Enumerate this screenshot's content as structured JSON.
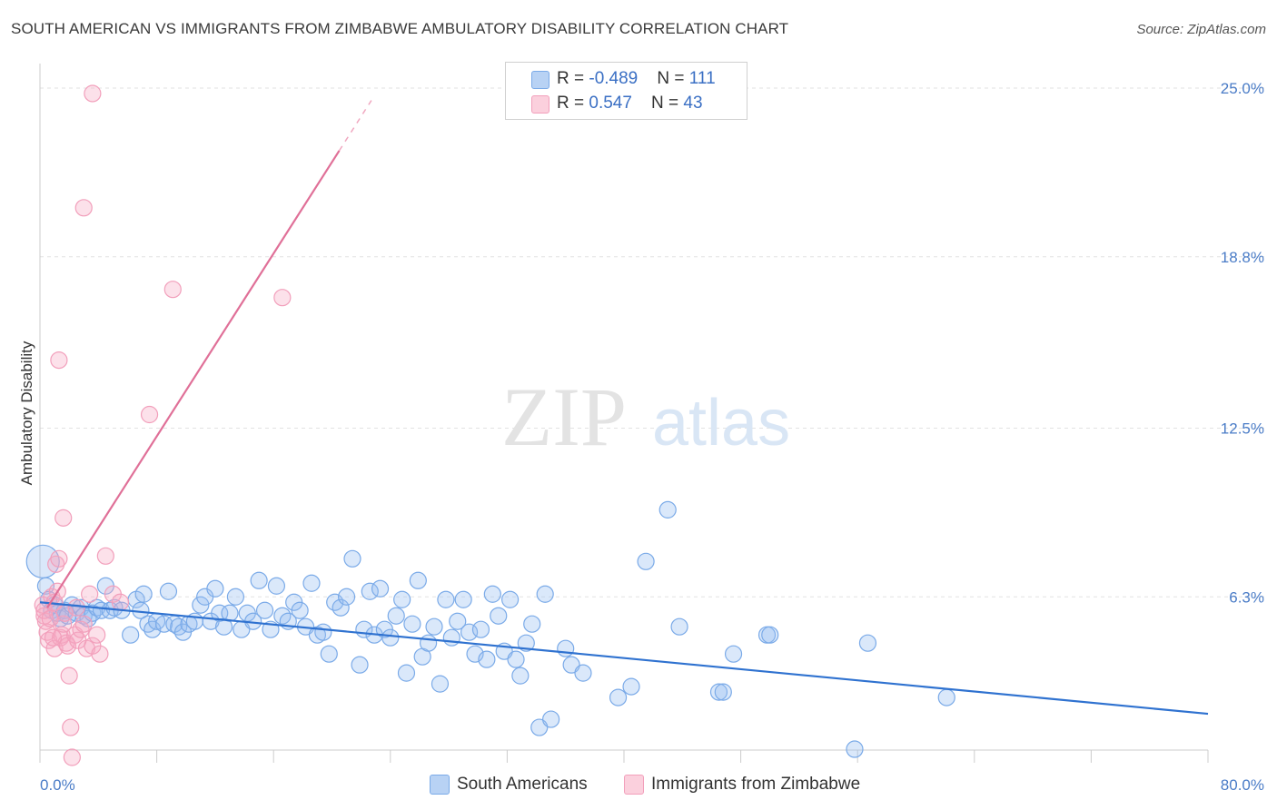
{
  "header": {
    "title": "SOUTH AMERICAN VS IMMIGRANTS FROM ZIMBABWE AMBULATORY DISABILITY CORRELATION CHART",
    "source": "Source: ZipAtlas.com"
  },
  "watermark": {
    "zip": "ZIP",
    "atlas": "atlas"
  },
  "legend": {
    "row1": {
      "r_label": "R = ",
      "r_value": "-0.489",
      "n_label": "N = ",
      "n_value": "111"
    },
    "row2": {
      "r_label": "R = ",
      "r_value": " 0.547",
      "n_label": "N = ",
      "n_value": "43"
    }
  },
  "chart_data": {
    "type": "scatter",
    "title": "SOUTH AMERICAN VS IMMIGRANTS FROM ZIMBABWE AMBULATORY DISABILITY CORRELATION CHART",
    "xlabel": "",
    "ylabel": "Ambulatory Disability",
    "xlim": [
      0,
      80
    ],
    "ylim": [
      0,
      26
    ],
    "y_ticks": [
      6.3,
      12.5,
      18.8,
      25.0
    ],
    "y_tick_labels": [
      "6.3%",
      "12.5%",
      "18.8%",
      "25.0%"
    ],
    "x_tick_labels": [
      "0.0%",
      "80.0%"
    ],
    "grid": true,
    "legend_placement": "top-center",
    "series": [
      {
        "name": "South Americans",
        "color": "#7aaae8",
        "trend": {
          "x": [
            0,
            80
          ],
          "y": [
            6.1,
            2.0
          ]
        },
        "points": [
          [
            0.2,
            7.6
          ],
          [
            0.4,
            6.7
          ],
          [
            0.6,
            6.2
          ],
          [
            0.8,
            5.8
          ],
          [
            1.0,
            6.0
          ],
          [
            1.2,
            5.7
          ],
          [
            1.4,
            5.5
          ],
          [
            1.7,
            5.8
          ],
          [
            1.9,
            5.6
          ],
          [
            2.2,
            6.0
          ],
          [
            2.5,
            5.7
          ],
          [
            2.8,
            5.9
          ],
          [
            3.0,
            5.6
          ],
          [
            3.3,
            5.5
          ],
          [
            3.6,
            5.7
          ],
          [
            3.9,
            5.9
          ],
          [
            4.2,
            5.8
          ],
          [
            4.5,
            6.7
          ],
          [
            4.8,
            5.8
          ],
          [
            5.1,
            5.9
          ],
          [
            5.6,
            5.8
          ],
          [
            6.2,
            4.9
          ],
          [
            6.6,
            6.2
          ],
          [
            6.9,
            5.8
          ],
          [
            7.1,
            6.4
          ],
          [
            7.4,
            5.3
          ],
          [
            7.7,
            5.1
          ],
          [
            8.0,
            5.4
          ],
          [
            8.5,
            5.3
          ],
          [
            8.8,
            6.5
          ],
          [
            9.2,
            5.3
          ],
          [
            9.5,
            5.2
          ],
          [
            9.8,
            5.0
          ],
          [
            10.2,
            5.3
          ],
          [
            10.6,
            5.4
          ],
          [
            11.0,
            6.0
          ],
          [
            11.3,
            6.3
          ],
          [
            11.7,
            5.4
          ],
          [
            12.0,
            6.6
          ],
          [
            12.3,
            5.7
          ],
          [
            12.6,
            5.2
          ],
          [
            13.0,
            5.7
          ],
          [
            13.4,
            6.3
          ],
          [
            13.8,
            5.1
          ],
          [
            14.2,
            5.7
          ],
          [
            14.6,
            5.4
          ],
          [
            15.0,
            6.9
          ],
          [
            15.4,
            5.8
          ],
          [
            15.8,
            5.1
          ],
          [
            16.2,
            6.7
          ],
          [
            16.6,
            5.6
          ],
          [
            17.0,
            5.4
          ],
          [
            17.4,
            6.1
          ],
          [
            17.8,
            5.8
          ],
          [
            18.2,
            5.2
          ],
          [
            18.6,
            6.8
          ],
          [
            19.0,
            4.9
          ],
          [
            19.4,
            5.0
          ],
          [
            19.8,
            4.2
          ],
          [
            20.2,
            6.1
          ],
          [
            20.6,
            5.9
          ],
          [
            21.0,
            6.3
          ],
          [
            21.4,
            7.7
          ],
          [
            21.9,
            3.8
          ],
          [
            22.2,
            5.1
          ],
          [
            22.6,
            6.5
          ],
          [
            22.9,
            4.9
          ],
          [
            23.3,
            6.6
          ],
          [
            23.6,
            5.1
          ],
          [
            24.0,
            4.8
          ],
          [
            24.4,
            5.6
          ],
          [
            24.8,
            6.2
          ],
          [
            25.1,
            3.5
          ],
          [
            25.5,
            5.3
          ],
          [
            25.9,
            6.9
          ],
          [
            26.2,
            4.1
          ],
          [
            26.6,
            4.6
          ],
          [
            27.0,
            5.2
          ],
          [
            27.4,
            3.1
          ],
          [
            27.8,
            6.2
          ],
          [
            28.2,
            4.8
          ],
          [
            28.6,
            5.4
          ],
          [
            29.0,
            6.2
          ],
          [
            29.4,
            5.0
          ],
          [
            29.8,
            4.2
          ],
          [
            30.2,
            5.1
          ],
          [
            30.6,
            4.0
          ],
          [
            31.0,
            6.4
          ],
          [
            31.4,
            5.6
          ],
          [
            31.8,
            4.3
          ],
          [
            32.2,
            6.2
          ],
          [
            32.6,
            4.0
          ],
          [
            32.9,
            3.4
          ],
          [
            33.3,
            4.6
          ],
          [
            33.7,
            5.3
          ],
          [
            34.2,
            1.5
          ],
          [
            34.6,
            6.4
          ],
          [
            35.0,
            1.8
          ],
          [
            36.0,
            4.4
          ],
          [
            36.4,
            3.8
          ],
          [
            37.2,
            3.5
          ],
          [
            39.6,
            2.6
          ],
          [
            40.5,
            3.0
          ],
          [
            41.5,
            7.6
          ],
          [
            43.0,
            9.5
          ],
          [
            43.8,
            5.2
          ],
          [
            46.5,
            2.8
          ],
          [
            46.8,
            2.8
          ],
          [
            47.5,
            4.2
          ],
          [
            49.8,
            4.9
          ],
          [
            50.0,
            4.9
          ],
          [
            55.8,
            0.7
          ],
          [
            56.7,
            4.6
          ],
          [
            62.1,
            2.6
          ]
        ]
      },
      {
        "name": "Immigrants from Zimbabwe",
        "color": "#f29fbb",
        "trend": {
          "x": [
            0.5,
            20.5
          ],
          "y": [
            5.9,
            22.7
          ]
        },
        "points": [
          [
            0.2,
            6.0
          ],
          [
            0.3,
            5.6
          ],
          [
            0.4,
            5.4
          ],
          [
            0.5,
            5.0
          ],
          [
            0.6,
            4.7
          ],
          [
            0.8,
            6.3
          ],
          [
            1.0,
            4.4
          ],
          [
            1.1,
            7.5
          ],
          [
            1.2,
            6.5
          ],
          [
            1.3,
            7.7
          ],
          [
            1.4,
            4.8
          ],
          [
            1.5,
            4.9
          ],
          [
            1.6,
            5.3
          ],
          [
            1.7,
            5.7
          ],
          [
            1.8,
            4.6
          ],
          [
            1.9,
            4.5
          ],
          [
            2.0,
            3.4
          ],
          [
            2.1,
            1.5
          ],
          [
            2.2,
            0.4
          ],
          [
            2.4,
            4.9
          ],
          [
            2.6,
            4.7
          ],
          [
            2.8,
            5.1
          ],
          [
            3.0,
            5.3
          ],
          [
            3.2,
            4.4
          ],
          [
            3.4,
            6.4
          ],
          [
            3.6,
            4.5
          ],
          [
            3.9,
            4.9
          ],
          [
            4.1,
            4.2
          ],
          [
            4.5,
            7.8
          ],
          [
            5.0,
            6.4
          ],
          [
            5.5,
            6.1
          ],
          [
            7.5,
            13.0
          ],
          [
            9.1,
            17.6
          ],
          [
            16.6,
            17.3
          ],
          [
            1.3,
            15.0
          ],
          [
            1.6,
            9.2
          ],
          [
            3.0,
            20.6
          ],
          [
            3.6,
            24.8
          ],
          [
            0.3,
            5.8
          ],
          [
            0.7,
            5.5
          ],
          [
            1.0,
            6.1
          ],
          [
            0.9,
            4.8
          ],
          [
            2.5,
            5.9
          ]
        ]
      }
    ]
  },
  "bottom_legend": {
    "item1": "South Americans",
    "item2": "Immigrants from Zimbabwe"
  }
}
